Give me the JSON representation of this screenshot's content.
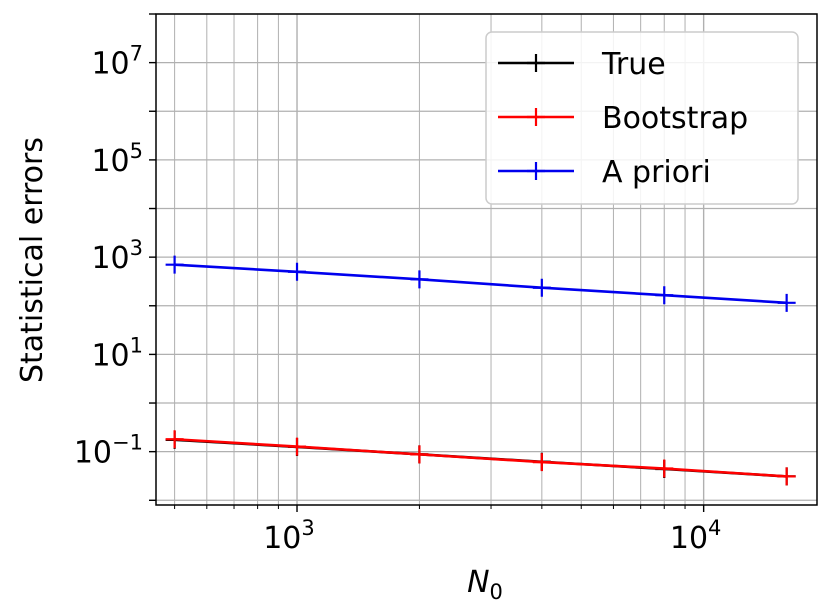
{
  "chart_data": {
    "type": "line",
    "xscale": "log",
    "yscale": "log",
    "xlabel": "N_0",
    "ylabel": "Statistical errors",
    "xlim": [
      450,
      19000
    ],
    "ylim": [
      0.008,
      100000000
    ],
    "grid": true,
    "legend_position": "upper right",
    "x_ticks": [
      {
        "value": 1000,
        "base": "10",
        "exp": "3"
      },
      {
        "value": 10000,
        "base": "10",
        "exp": "4"
      }
    ],
    "y_ticks": [
      {
        "value": 0.1,
        "base": "10",
        "exp": "−1"
      },
      {
        "value": 10,
        "base": "10",
        "exp": "1"
      },
      {
        "value": 1000,
        "base": "10",
        "exp": "3"
      },
      {
        "value": 100000,
        "base": "10",
        "exp": "5"
      },
      {
        "value": 10000000,
        "base": "10",
        "exp": "7"
      }
    ],
    "x": [
      500,
      1000,
      2000,
      4000,
      8000,
      16000
    ],
    "series": [
      {
        "name": "True",
        "color": "#000000",
        "values": [
          0.175,
          0.125,
          0.088,
          0.062,
          0.044,
          0.031
        ]
      },
      {
        "name": "Bootstrap",
        "color": "#ff0000",
        "values": [
          0.18,
          0.127,
          0.088,
          0.061,
          0.045,
          0.031
        ]
      },
      {
        "name": "A priori",
        "color": "#0000ee",
        "values": [
          700,
          500,
          350,
          235,
          165,
          115
        ]
      }
    ]
  }
}
